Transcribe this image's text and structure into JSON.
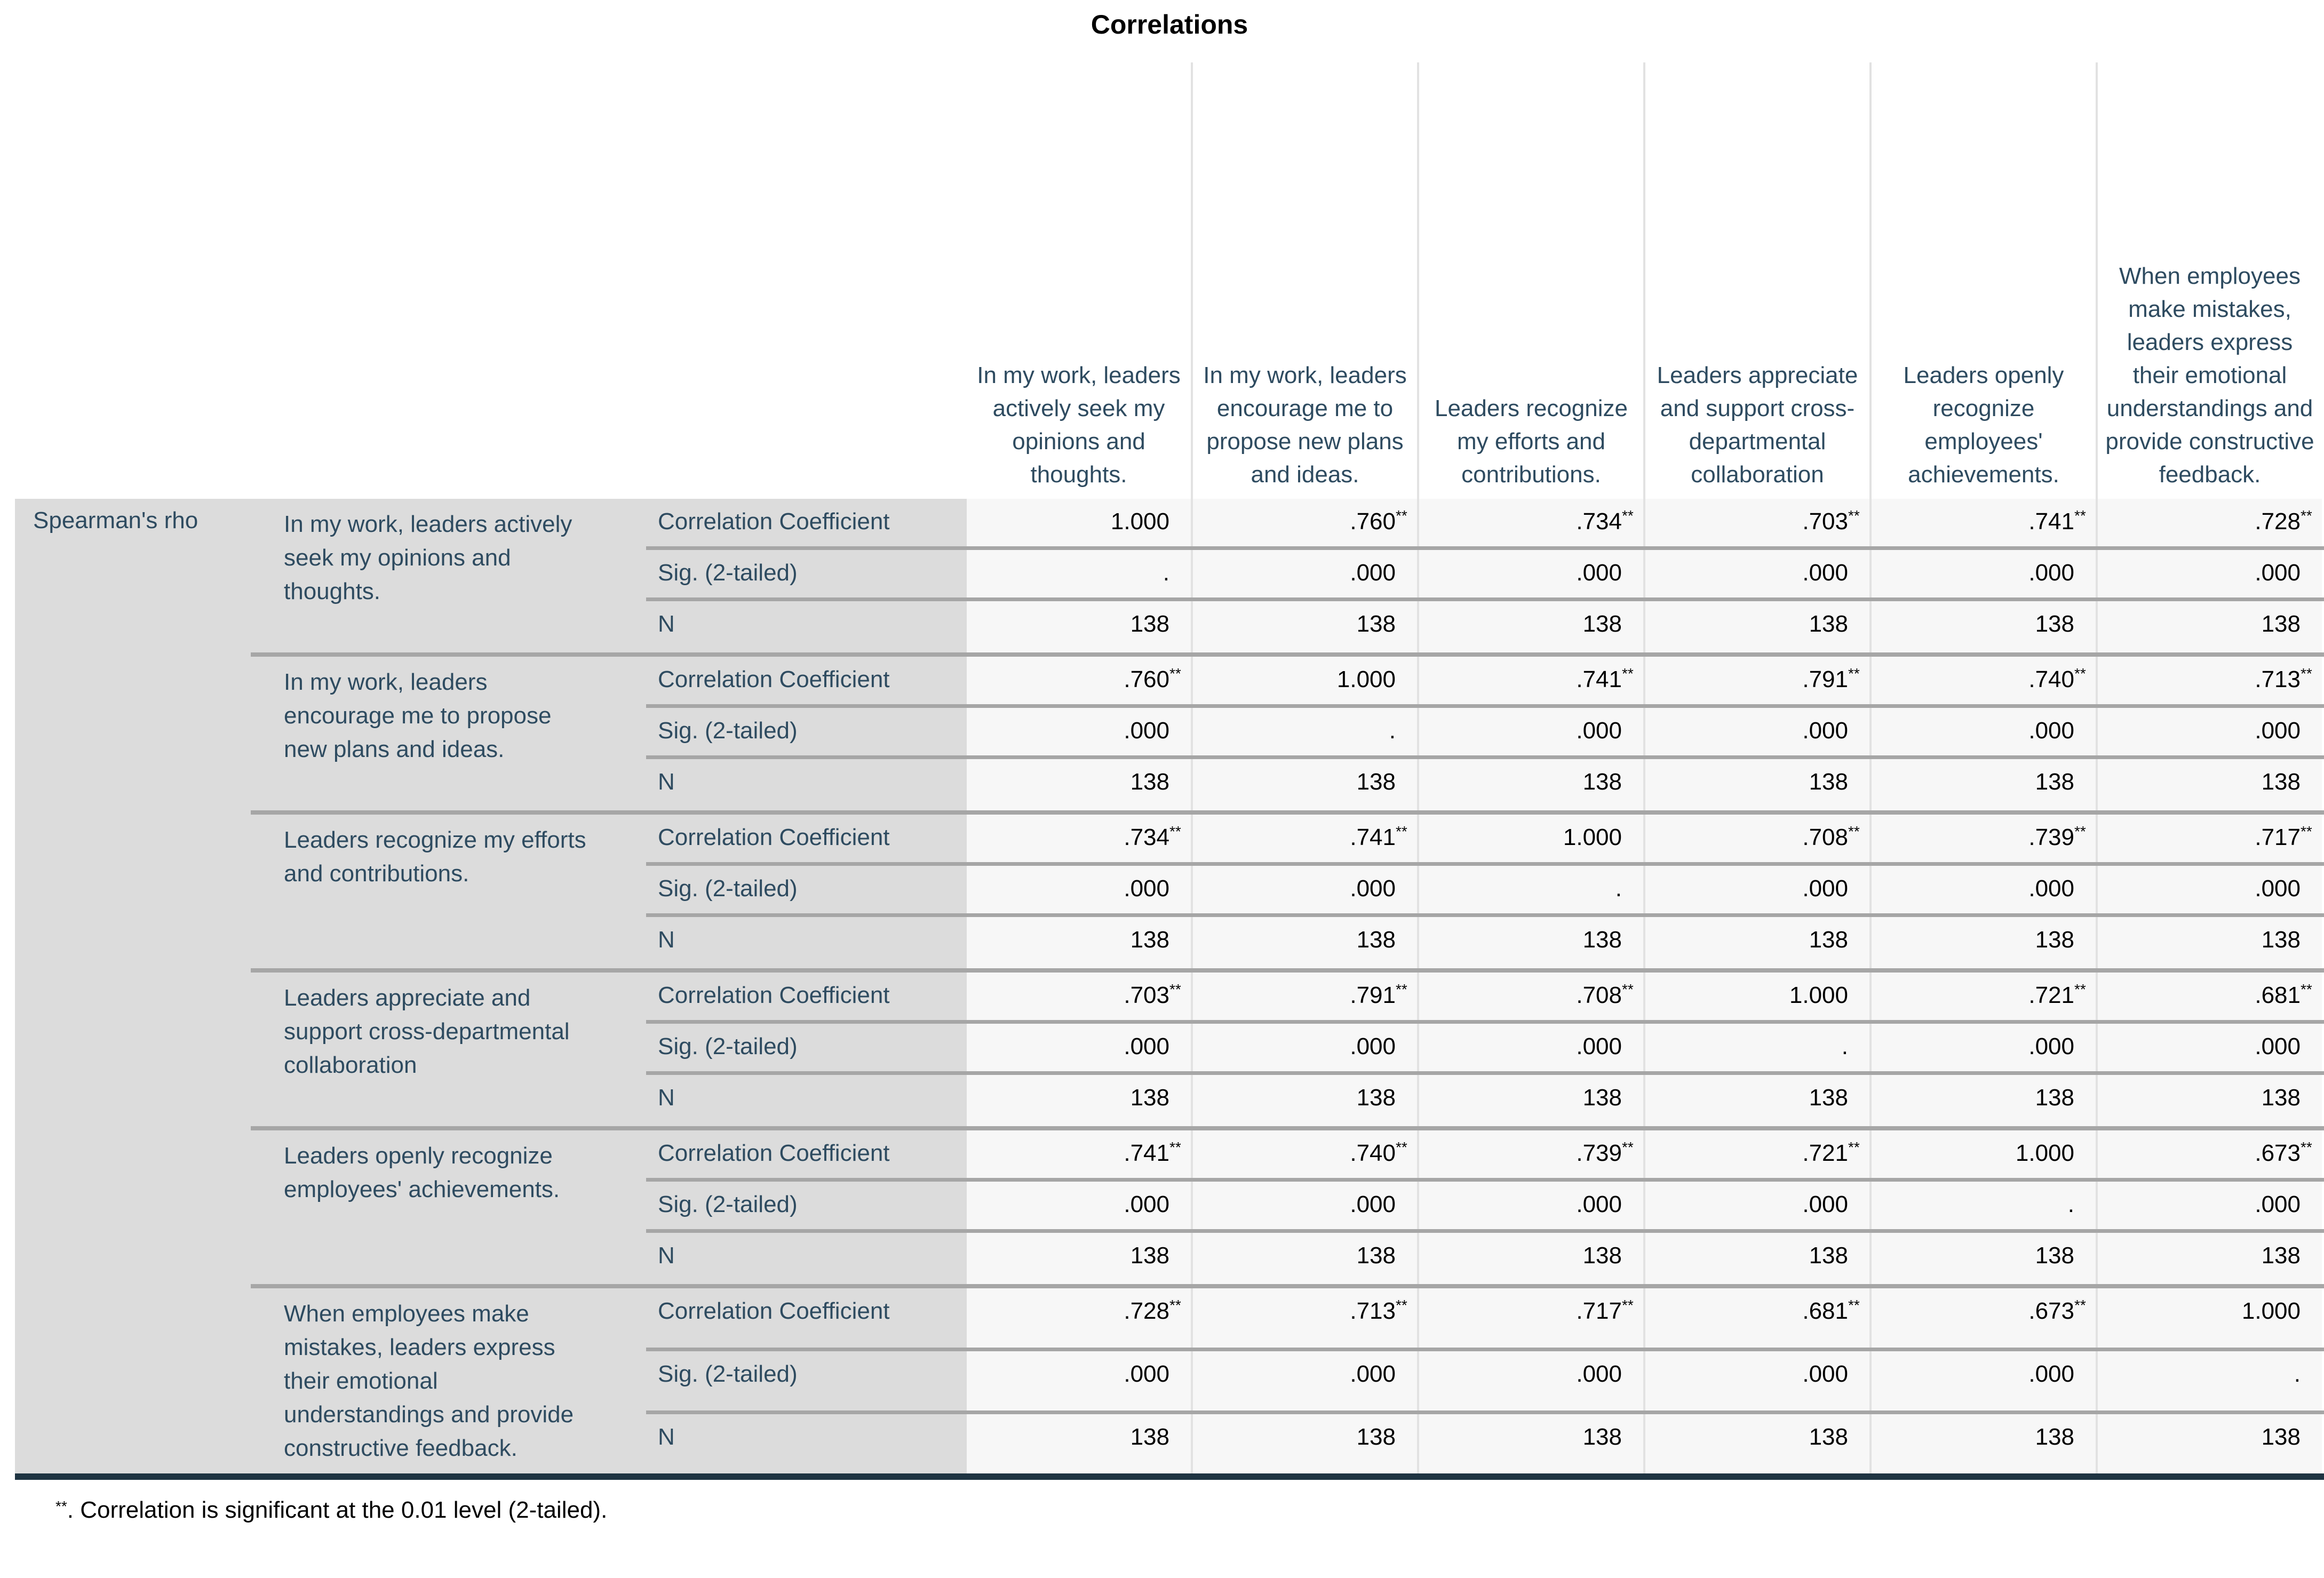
{
  "title": "Correlations",
  "table": {
    "row_dimension_label": "Spearman's rho",
    "stat_row_labels": [
      "Correlation Coefficient",
      "Sig. (2-tailed)",
      "N"
    ],
    "variables": [
      "In my work, leaders actively seek my opinions and thoughts.",
      "In my work, leaders encourage me to propose new plans and ideas.",
      "Leaders recognize my efforts and contributions.",
      "Leaders appreciate and support cross-departmental collaboration",
      "Leaders openly recognize employees' achievements.",
      "When employees make mistakes, leaders express their emotional understandings and provide constructive feedback."
    ],
    "correlation_coefficients": [
      [
        "1.000",
        ".760**",
        ".734**",
        ".703**",
        ".741**",
        ".728**"
      ],
      [
        ".760**",
        "1.000",
        ".741**",
        ".791**",
        ".740**",
        ".713**"
      ],
      [
        ".734**",
        ".741**",
        "1.000",
        ".708**",
        ".739**",
        ".717**"
      ],
      [
        ".703**",
        ".791**",
        ".708**",
        "1.000",
        ".721**",
        ".681**"
      ],
      [
        ".741**",
        ".740**",
        ".739**",
        ".721**",
        "1.000",
        ".673**"
      ],
      [
        ".728**",
        ".713**",
        ".717**",
        ".681**",
        ".673**",
        "1.000"
      ]
    ],
    "sig_2_tailed": [
      [
        ".",
        ".000",
        ".000",
        ".000",
        ".000",
        ".000"
      ],
      [
        ".000",
        ".",
        ".000",
        ".000",
        ".000",
        ".000"
      ],
      [
        ".000",
        ".000",
        ".",
        ".000",
        ".000",
        ".000"
      ],
      [
        ".000",
        ".000",
        ".000",
        ".",
        ".000",
        ".000"
      ],
      [
        ".000",
        ".000",
        ".000",
        ".000",
        ".",
        ".000"
      ],
      [
        ".000",
        ".000",
        ".000",
        ".000",
        ".000",
        "."
      ]
    ],
    "n_values": [
      [
        "138",
        "138",
        "138",
        "138",
        "138",
        "138"
      ],
      [
        "138",
        "138",
        "138",
        "138",
        "138",
        "138"
      ],
      [
        "138",
        "138",
        "138",
        "138",
        "138",
        "138"
      ],
      [
        "138",
        "138",
        "138",
        "138",
        "138",
        "138"
      ],
      [
        "138",
        "138",
        "138",
        "138",
        "138",
        "138"
      ],
      [
        "138",
        "138",
        "138",
        "138",
        "138",
        "138"
      ]
    ]
  },
  "footnote": {
    "marker": "**",
    "text": ". Correlation is significant at the 0.01 level (2-tailed)."
  },
  "colors": {
    "label_text": "#2e4b60",
    "data_text": "#000000",
    "stub_bg": "#dcdcdc",
    "cell_bg": "#f7f7f7",
    "separator_line": "#a6a6a6",
    "column_line": "#e2e2e2",
    "bottom_border": "#1f3442"
  }
}
